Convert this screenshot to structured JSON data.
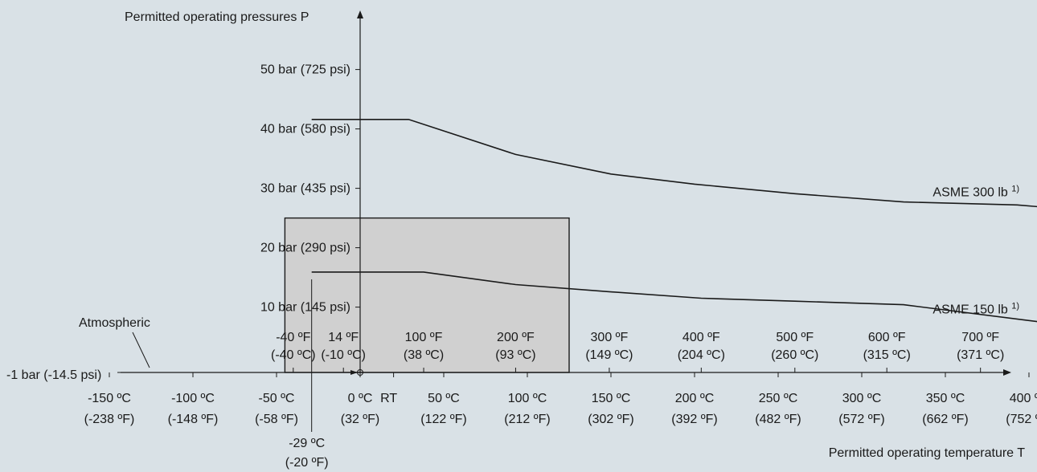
{
  "chart_data": {
    "type": "line",
    "xlabel": "Permitted operating temperature T",
    "ylabel": "Permitted operating pressures P",
    "x_unit": "°C",
    "y_unit": "bar",
    "xlim": [
      -170,
      435
    ],
    "ylim": [
      -1,
      55
    ],
    "atmospheric_label": "Atmospheric",
    "baseline_label": "-1 bar (-14.5 psi)",
    "y_ticks": [
      {
        "value": 10,
        "label": "10 bar (145 psi)"
      },
      {
        "value": 20,
        "label": "20 bar (290 psi)"
      },
      {
        "value": 30,
        "label": "30 bar (435 psi)"
      },
      {
        "value": 40,
        "label": "40 bar (580 psi)"
      },
      {
        "value": 50,
        "label": "50 bar (725 psi)"
      }
    ],
    "x_ticks_c": [
      {
        "value": -150,
        "line1": "-150 ºC",
        "line2": "(-238 ºF)"
      },
      {
        "value": -100,
        "line1": "-100 ºC",
        "line2": "(-148 ºF)"
      },
      {
        "value": -50,
        "line1": "-50 ºC",
        "line2": "(-58 ºF)"
      },
      {
        "value": 0,
        "line1": "0 ºC",
        "line2": "(32 ºF)"
      },
      {
        "value": 50,
        "line1": "50 ºC",
        "line2": "(122 ºF)"
      },
      {
        "value": 100,
        "line1": "100 ºC",
        "line2": "(212 ºF)"
      },
      {
        "value": 150,
        "line1": "150 ºC",
        "line2": "(302 ºF)"
      },
      {
        "value": 200,
        "line1": "200 ºC",
        "line2": "(392 ºF)"
      },
      {
        "value": 250,
        "line1": "250 ºC",
        "line2": "(482 ºF)"
      },
      {
        "value": 300,
        "line1": "300 ºC",
        "line2": "(572 ºF)"
      },
      {
        "value": 350,
        "line1": "350 ºC",
        "line2": "(662 ºF)"
      },
      {
        "value": 400,
        "line1": "400 ºC",
        "line2": "(752 ºF)"
      }
    ],
    "x_ticks_f": [
      {
        "value": -40,
        "line1": "-40 ºF",
        "line2": "(-40 ºC)"
      },
      {
        "value": -10,
        "line1": "14 ºF",
        "line2": "(-10 ºC)"
      },
      {
        "value": 38,
        "line1": "100 ºF",
        "line2": "(38 ºC)"
      },
      {
        "value": 93,
        "line1": "200 ºF",
        "line2": "(93 ºC)"
      },
      {
        "value": 149,
        "line1": "300 ºF",
        "line2": "(149 ºC)"
      },
      {
        "value": 204,
        "line1": "400 ºF",
        "line2": "(204 ºC)"
      },
      {
        "value": 260,
        "line1": "500 ºF",
        "line2": "(260 ºC)"
      },
      {
        "value": 315,
        "line1": "600 ºF",
        "line2": "(315 ºC)"
      },
      {
        "value": 371,
        "line1": "700 ºF",
        "line2": "(371 ºC)"
      }
    ],
    "rt_label": {
      "value": 20,
      "text": "RT"
    },
    "minus29_marker": {
      "value": -29,
      "line1": "-29 ºC",
      "line2": "(-20 ºF)"
    },
    "highlight_region": {
      "x_range": [
        -45,
        125
      ],
      "y_range": [
        -1,
        25
      ]
    },
    "series": [
      {
        "name": "ASME 300 lb",
        "superscript": "1)",
        "points": [
          [
            -29,
            41.6
          ],
          [
            29,
            41.6
          ],
          [
            93,
            35.7
          ],
          [
            150,
            32.4
          ],
          [
            200,
            30.7
          ],
          [
            260,
            29.1
          ],
          [
            325,
            27.7
          ],
          [
            393,
            27.2
          ],
          [
            435,
            26.2
          ]
        ]
      },
      {
        "name": "ASME 150 lb",
        "superscript": "1)",
        "points": [
          [
            -29,
            15.9
          ],
          [
            38,
            15.9
          ],
          [
            93,
            13.8
          ],
          [
            149,
            12.6
          ],
          [
            204,
            11.5
          ],
          [
            260,
            11.0
          ],
          [
            325,
            10.4
          ],
          [
            435,
            6.5
          ]
        ]
      }
    ]
  }
}
